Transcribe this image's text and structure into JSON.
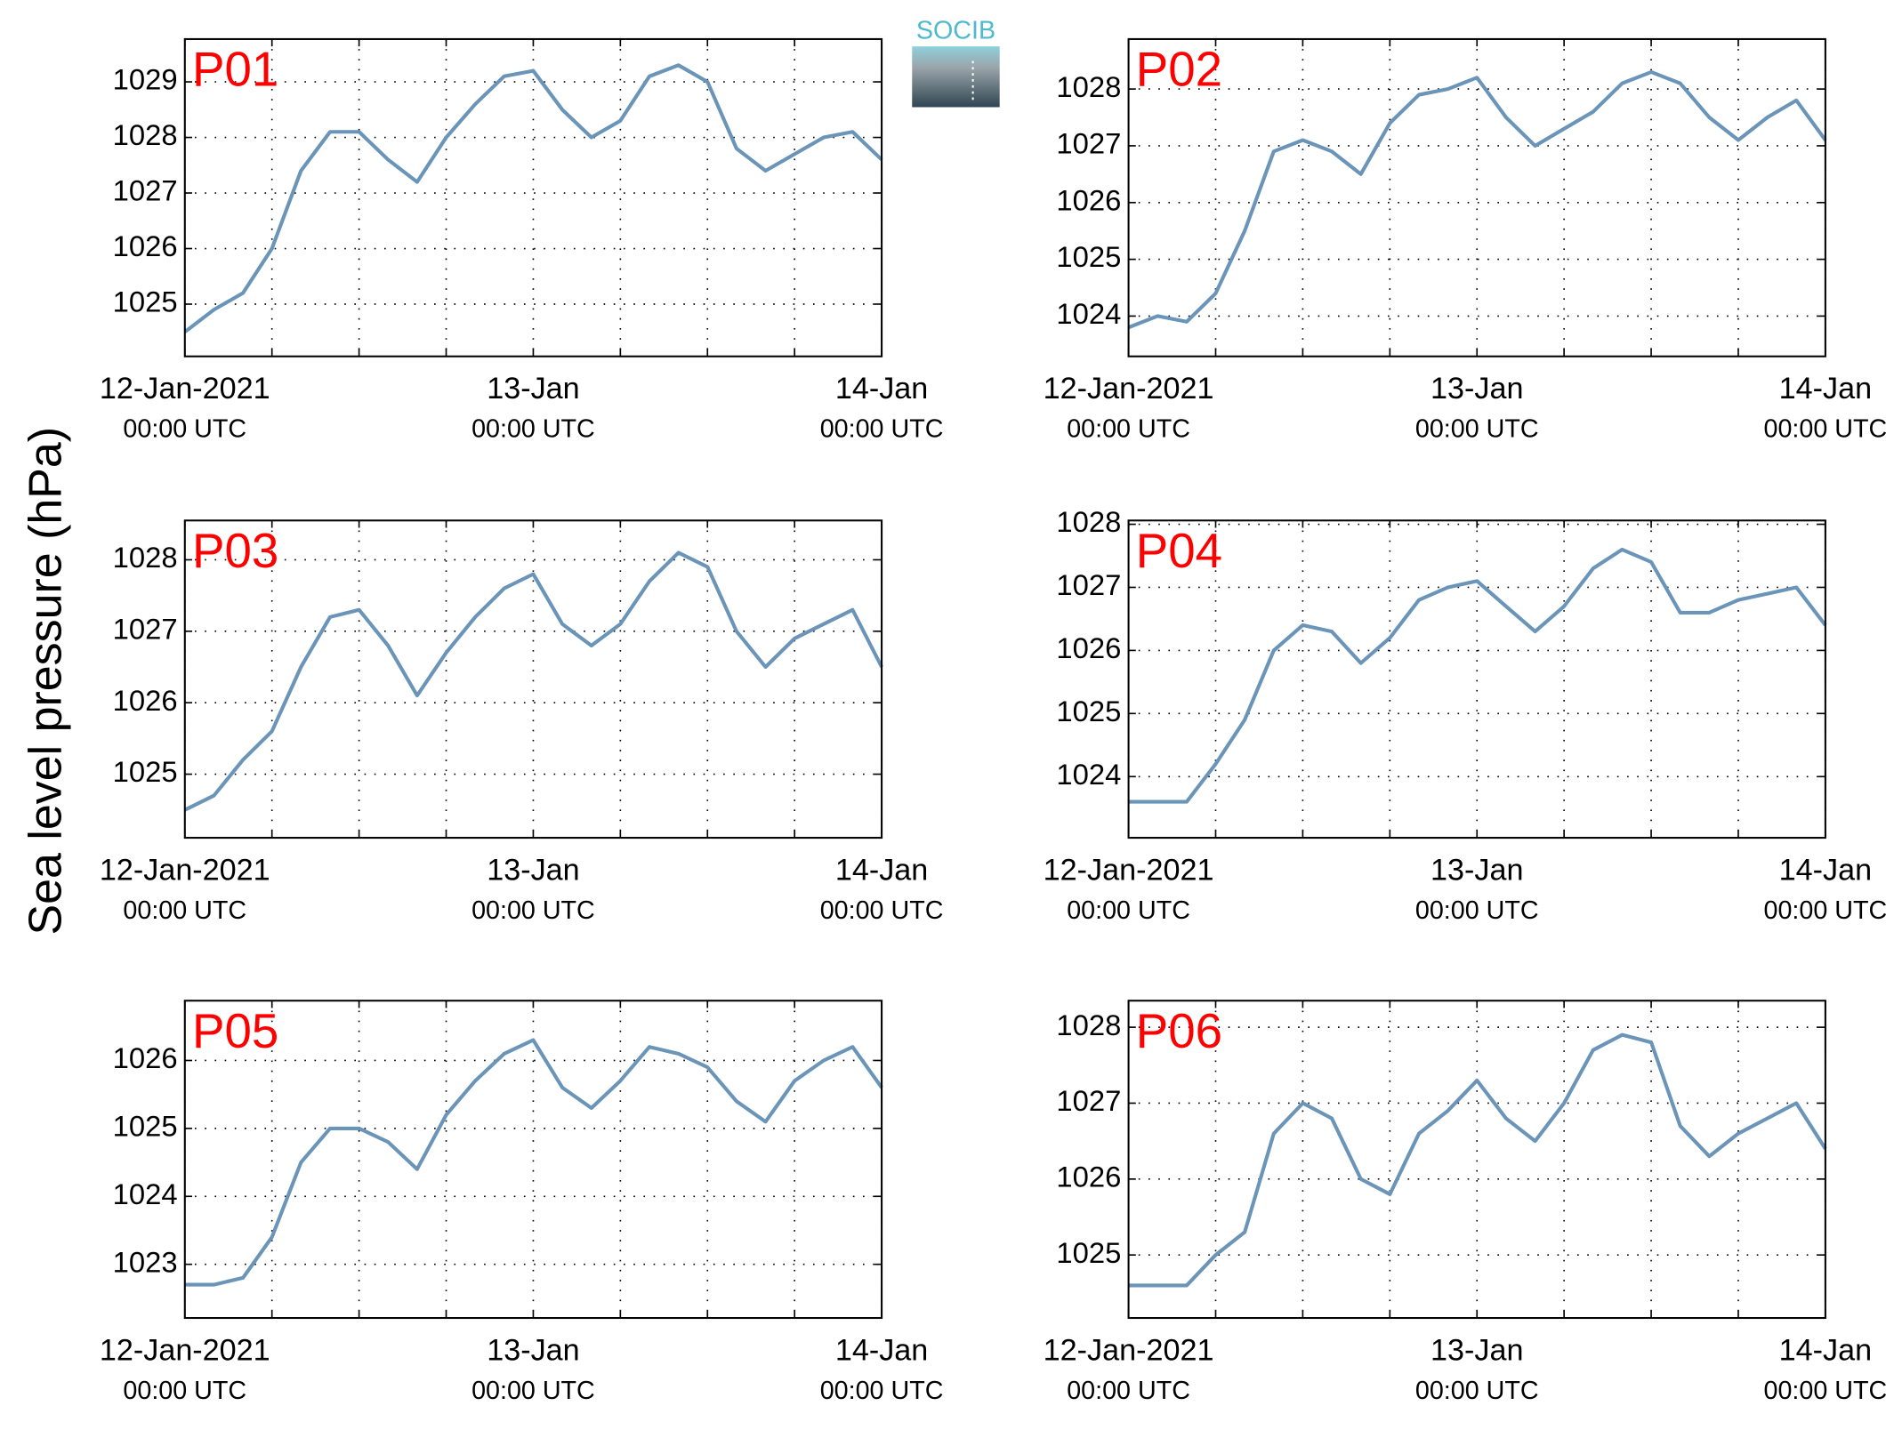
{
  "ylabel": "Sea level pressure (hPa)",
  "logo": "SOCIB",
  "chart_data": [
    {
      "type": "line",
      "title": "P01",
      "color": "#6a94b8",
      "grid": true,
      "x": [
        "2021-01-12T00:00",
        "2021-01-12T02:00",
        "2021-01-12T04:00",
        "2021-01-12T06:00",
        "2021-01-12T08:00",
        "2021-01-12T10:00",
        "2021-01-12T12:00",
        "2021-01-12T14:00",
        "2021-01-12T16:00",
        "2021-01-12T18:00",
        "2021-01-12T20:00",
        "2021-01-12T22:00",
        "2021-01-13T00:00",
        "2021-01-13T02:00",
        "2021-01-13T04:00",
        "2021-01-13T06:00",
        "2021-01-13T08:00",
        "2021-01-13T10:00",
        "2021-01-13T12:00",
        "2021-01-13T14:00",
        "2021-01-13T16:00",
        "2021-01-13T18:00",
        "2021-01-13T20:00",
        "2021-01-13T22:00",
        "2021-01-14T00:00"
      ],
      "values": [
        1024.5,
        1024.9,
        1025.2,
        1026.0,
        1027.4,
        1028.1,
        1028.1,
        1027.6,
        1027.2,
        1028.0,
        1028.6,
        1029.1,
        1029.2,
        1028.5,
        1028.0,
        1028.3,
        1029.1,
        1029.3,
        1029.0,
        1027.8,
        1027.4,
        1027.7,
        1028.0,
        1028.1,
        1027.6
      ],
      "xlim": [
        "2021-01-12T00:00",
        "2021-01-14T00:00"
      ],
      "xticks": [
        {
          "value": "2021-01-12T00:00",
          "label": "12-Jan-2021"
        },
        {
          "value": "2021-01-13T00:00",
          "label": "13-Jan"
        },
        {
          "value": "2021-01-14T00:00",
          "label": "14-Jan"
        }
      ],
      "xtick_times": [
        "00:00 UTC",
        "00:00 UTC",
        "00:00 UTC"
      ],
      "xminor": [
        "2021-01-12T06:00",
        "2021-01-12T12:00",
        "2021-01-12T18:00",
        "2021-01-13T06:00",
        "2021-01-13T12:00",
        "2021-01-13T18:00"
      ],
      "ylim": [
        1024.06,
        1029.77
      ],
      "yticks": [
        1025,
        1026,
        1027,
        1028,
        1029
      ]
    },
    {
      "type": "line",
      "title": "P02",
      "color": "#6a94b8",
      "grid": true,
      "x": [
        "2021-01-12T00:00",
        "2021-01-12T02:00",
        "2021-01-12T04:00",
        "2021-01-12T06:00",
        "2021-01-12T08:00",
        "2021-01-12T10:00",
        "2021-01-12T12:00",
        "2021-01-12T14:00",
        "2021-01-12T16:00",
        "2021-01-12T18:00",
        "2021-01-12T20:00",
        "2021-01-12T22:00",
        "2021-01-13T00:00",
        "2021-01-13T02:00",
        "2021-01-13T04:00",
        "2021-01-13T06:00",
        "2021-01-13T08:00",
        "2021-01-13T10:00",
        "2021-01-13T12:00",
        "2021-01-13T14:00",
        "2021-01-13T16:00",
        "2021-01-13T18:00",
        "2021-01-13T20:00",
        "2021-01-13T22:00",
        "2021-01-14T00:00"
      ],
      "values": [
        1023.8,
        1024.0,
        1023.9,
        1024.4,
        1025.5,
        1026.9,
        1027.1,
        1026.9,
        1026.5,
        1027.4,
        1027.9,
        1028.0,
        1028.2,
        1027.5,
        1027.0,
        1027.3,
        1027.6,
        1028.1,
        1028.3,
        1028.1,
        1027.5,
        1027.1,
        1027.5,
        1027.8,
        1027.1
      ],
      "xlim": [
        "2021-01-12T00:00",
        "2021-01-14T00:00"
      ],
      "xticks": [
        {
          "value": "2021-01-12T00:00",
          "label": "12-Jan-2021"
        },
        {
          "value": "2021-01-13T00:00",
          "label": "13-Jan"
        },
        {
          "value": "2021-01-14T00:00",
          "label": "14-Jan"
        }
      ],
      "xtick_times": [
        "00:00 UTC",
        "00:00 UTC",
        "00:00 UTC"
      ],
      "xminor": [
        "2021-01-12T06:00",
        "2021-01-12T12:00",
        "2021-01-12T18:00",
        "2021-01-13T06:00",
        "2021-01-13T12:00",
        "2021-01-13T18:00"
      ],
      "ylim": [
        1023.29,
        1028.88
      ],
      "yticks": [
        1024,
        1025,
        1026,
        1027,
        1028
      ]
    },
    {
      "type": "line",
      "title": "P03",
      "color": "#6a94b8",
      "grid": true,
      "x": [
        "2021-01-12T00:00",
        "2021-01-12T02:00",
        "2021-01-12T04:00",
        "2021-01-12T06:00",
        "2021-01-12T08:00",
        "2021-01-12T10:00",
        "2021-01-12T12:00",
        "2021-01-12T14:00",
        "2021-01-12T16:00",
        "2021-01-12T18:00",
        "2021-01-12T20:00",
        "2021-01-12T22:00",
        "2021-01-13T00:00",
        "2021-01-13T02:00",
        "2021-01-13T04:00",
        "2021-01-13T06:00",
        "2021-01-13T08:00",
        "2021-01-13T10:00",
        "2021-01-13T12:00",
        "2021-01-13T14:00",
        "2021-01-13T16:00",
        "2021-01-13T18:00",
        "2021-01-13T20:00",
        "2021-01-13T22:00",
        "2021-01-14T00:00"
      ],
      "values": [
        1024.5,
        1024.7,
        1025.2,
        1025.6,
        1026.5,
        1027.2,
        1027.3,
        1026.8,
        1026.1,
        1026.7,
        1027.2,
        1027.6,
        1027.8,
        1027.1,
        1026.8,
        1027.1,
        1027.7,
        1028.1,
        1027.9,
        1027.0,
        1026.5,
        1026.9,
        1027.1,
        1027.3,
        1026.5
      ],
      "xlim": [
        "2021-01-12T00:00",
        "2021-01-14T00:00"
      ],
      "xticks": [
        {
          "value": "2021-01-12T00:00",
          "label": "12-Jan-2021"
        },
        {
          "value": "2021-01-13T00:00",
          "label": "13-Jan"
        },
        {
          "value": "2021-01-14T00:00",
          "label": "14-Jan"
        }
      ],
      "xtick_times": [
        "00:00 UTC",
        "00:00 UTC",
        "00:00 UTC"
      ],
      "xminor": [
        "2021-01-12T06:00",
        "2021-01-12T12:00",
        "2021-01-12T18:00",
        "2021-01-13T06:00",
        "2021-01-13T12:00",
        "2021-01-13T18:00"
      ],
      "ylim": [
        1024.11,
        1028.55
      ],
      "yticks": [
        1025,
        1026,
        1027,
        1028
      ]
    },
    {
      "type": "line",
      "title": "P04",
      "color": "#6a94b8",
      "grid": true,
      "x": [
        "2021-01-12T00:00",
        "2021-01-12T02:00",
        "2021-01-12T04:00",
        "2021-01-12T06:00",
        "2021-01-12T08:00",
        "2021-01-12T10:00",
        "2021-01-12T12:00",
        "2021-01-12T14:00",
        "2021-01-12T16:00",
        "2021-01-12T18:00",
        "2021-01-12T20:00",
        "2021-01-12T22:00",
        "2021-01-13T00:00",
        "2021-01-13T02:00",
        "2021-01-13T04:00",
        "2021-01-13T06:00",
        "2021-01-13T08:00",
        "2021-01-13T10:00",
        "2021-01-13T12:00",
        "2021-01-13T14:00",
        "2021-01-13T16:00",
        "2021-01-13T18:00",
        "2021-01-13T20:00",
        "2021-01-13T22:00",
        "2021-01-14T00:00"
      ],
      "values": [
        1023.6,
        1023.6,
        1023.6,
        1024.2,
        1024.9,
        1026.0,
        1026.4,
        1026.3,
        1025.8,
        1026.2,
        1026.8,
        1027.0,
        1027.1,
        1026.7,
        1026.3,
        1026.7,
        1027.3,
        1027.6,
        1027.4,
        1026.6,
        1026.6,
        1026.8,
        1026.9,
        1027.0,
        1026.4
      ],
      "xlim": [
        "2021-01-12T00:00",
        "2021-01-14T00:00"
      ],
      "xticks": [
        {
          "value": "2021-01-12T00:00",
          "label": "12-Jan-2021"
        },
        {
          "value": "2021-01-13T00:00",
          "label": "13-Jan"
        },
        {
          "value": "2021-01-14T00:00",
          "label": "14-Jan"
        }
      ],
      "xtick_times": [
        "00:00 UTC",
        "00:00 UTC",
        "00:00 UTC"
      ],
      "xminor": [
        "2021-01-12T06:00",
        "2021-01-12T12:00",
        "2021-01-12T18:00",
        "2021-01-13T06:00",
        "2021-01-13T12:00",
        "2021-01-13T18:00"
      ],
      "ylim": [
        1023.03,
        1028.06
      ],
      "yticks": [
        1024,
        1025,
        1026,
        1027,
        1028
      ]
    },
    {
      "type": "line",
      "title": "P05",
      "color": "#6a94b8",
      "grid": true,
      "x": [
        "2021-01-12T00:00",
        "2021-01-12T02:00",
        "2021-01-12T04:00",
        "2021-01-12T06:00",
        "2021-01-12T08:00",
        "2021-01-12T10:00",
        "2021-01-12T12:00",
        "2021-01-12T14:00",
        "2021-01-12T16:00",
        "2021-01-12T18:00",
        "2021-01-12T20:00",
        "2021-01-12T22:00",
        "2021-01-13T00:00",
        "2021-01-13T02:00",
        "2021-01-13T04:00",
        "2021-01-13T06:00",
        "2021-01-13T08:00",
        "2021-01-13T10:00",
        "2021-01-13T12:00",
        "2021-01-13T14:00",
        "2021-01-13T16:00",
        "2021-01-13T18:00",
        "2021-01-13T20:00",
        "2021-01-13T22:00",
        "2021-01-14T00:00"
      ],
      "values": [
        1022.7,
        1022.7,
        1022.8,
        1023.4,
        1024.5,
        1025.0,
        1025.0,
        1024.8,
        1024.4,
        1025.2,
        1025.7,
        1026.1,
        1026.3,
        1025.6,
        1025.3,
        1025.7,
        1026.2,
        1026.1,
        1025.9,
        1025.4,
        1025.1,
        1025.7,
        1026.0,
        1026.2,
        1025.6
      ],
      "xlim": [
        "2021-01-12T00:00",
        "2021-01-14T00:00"
      ],
      "xticks": [
        {
          "value": "2021-01-12T00:00",
          "label": "12-Jan-2021"
        },
        {
          "value": "2021-01-13T00:00",
          "label": "13-Jan"
        },
        {
          "value": "2021-01-14T00:00",
          "label": "14-Jan"
        }
      ],
      "xtick_times": [
        "00:00 UTC",
        "00:00 UTC",
        "00:00 UTC"
      ],
      "xminor": [
        "2021-01-12T06:00",
        "2021-01-12T12:00",
        "2021-01-12T18:00",
        "2021-01-13T06:00",
        "2021-01-13T12:00",
        "2021-01-13T18:00"
      ],
      "ylim": [
        1022.21,
        1026.88
      ],
      "yticks": [
        1023,
        1024,
        1025,
        1026
      ]
    },
    {
      "type": "line",
      "title": "P06",
      "color": "#6a94b8",
      "grid": true,
      "x": [
        "2021-01-12T00:00",
        "2021-01-12T02:00",
        "2021-01-12T04:00",
        "2021-01-12T06:00",
        "2021-01-12T08:00",
        "2021-01-12T10:00",
        "2021-01-12T12:00",
        "2021-01-12T14:00",
        "2021-01-12T16:00",
        "2021-01-12T18:00",
        "2021-01-12T20:00",
        "2021-01-12T22:00",
        "2021-01-13T00:00",
        "2021-01-13T02:00",
        "2021-01-13T04:00",
        "2021-01-13T06:00",
        "2021-01-13T08:00",
        "2021-01-13T10:00",
        "2021-01-13T12:00",
        "2021-01-13T14:00",
        "2021-01-13T16:00",
        "2021-01-13T18:00",
        "2021-01-13T20:00",
        "2021-01-13T22:00",
        "2021-01-14T00:00"
      ],
      "values": [
        1024.6,
        1024.6,
        1024.6,
        1025.0,
        1025.3,
        1026.6,
        1027.0,
        1026.8,
        1026.0,
        1025.8,
        1026.6,
        1026.9,
        1027.3,
        1026.8,
        1026.5,
        1027.0,
        1027.7,
        1027.9,
        1027.8,
        1026.7,
        1026.3,
        1026.6,
        1026.8,
        1027.0,
        1026.4
      ],
      "xlim": [
        "2021-01-12T00:00",
        "2021-01-14T00:00"
      ],
      "xticks": [
        {
          "value": "2021-01-12T00:00",
          "label": "12-Jan-2021"
        },
        {
          "value": "2021-01-13T00:00",
          "label": "13-Jan"
        },
        {
          "value": "2021-01-14T00:00",
          "label": "14-Jan"
        }
      ],
      "xtick_times": [
        "00:00 UTC",
        "00:00 UTC",
        "00:00 UTC"
      ],
      "xminor": [
        "2021-01-12T06:00",
        "2021-01-12T12:00",
        "2021-01-12T18:00",
        "2021-01-13T06:00",
        "2021-01-13T12:00",
        "2021-01-13T18:00"
      ],
      "ylim": [
        1024.17,
        1028.35
      ],
      "yticks": [
        1025,
        1026,
        1027,
        1028
      ]
    }
  ]
}
